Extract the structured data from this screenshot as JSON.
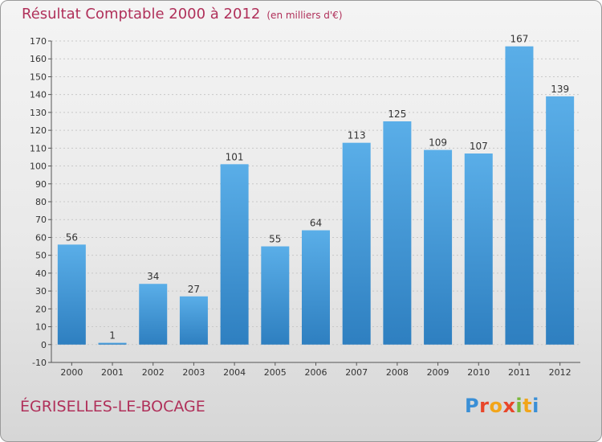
{
  "header": {
    "title": "Résultat Comptable 2000 à 2012",
    "subtitle": "(en milliers d'€)"
  },
  "footer": {
    "commune": "ÉGRISELLES-LE-BOCAGE",
    "logo_text": "Proxiti"
  },
  "colors": {
    "bar_light": "#5aaee8",
    "bar_dark": "#2e7fc0",
    "title": "#b0305a",
    "grid": "#c8c8c8"
  },
  "chart_data": {
    "type": "bar",
    "title": "Résultat Comptable 2000 à 2012",
    "subtitle": "(en milliers d'€)",
    "xlabel": "",
    "ylabel": "",
    "categories": [
      "2000",
      "2001",
      "2002",
      "2003",
      "2004",
      "2005",
      "2006",
      "2007",
      "2008",
      "2009",
      "2010",
      "2011",
      "2012"
    ],
    "values": [
      56,
      1,
      34,
      27,
      101,
      55,
      64,
      113,
      125,
      109,
      107,
      167,
      139
    ],
    "ylim": [
      -10,
      170
    ],
    "yticks": [
      -10,
      0,
      10,
      20,
      30,
      40,
      50,
      60,
      70,
      80,
      90,
      100,
      110,
      120,
      130,
      140,
      150,
      160,
      170
    ],
    "grid": true,
    "legend": "none"
  }
}
